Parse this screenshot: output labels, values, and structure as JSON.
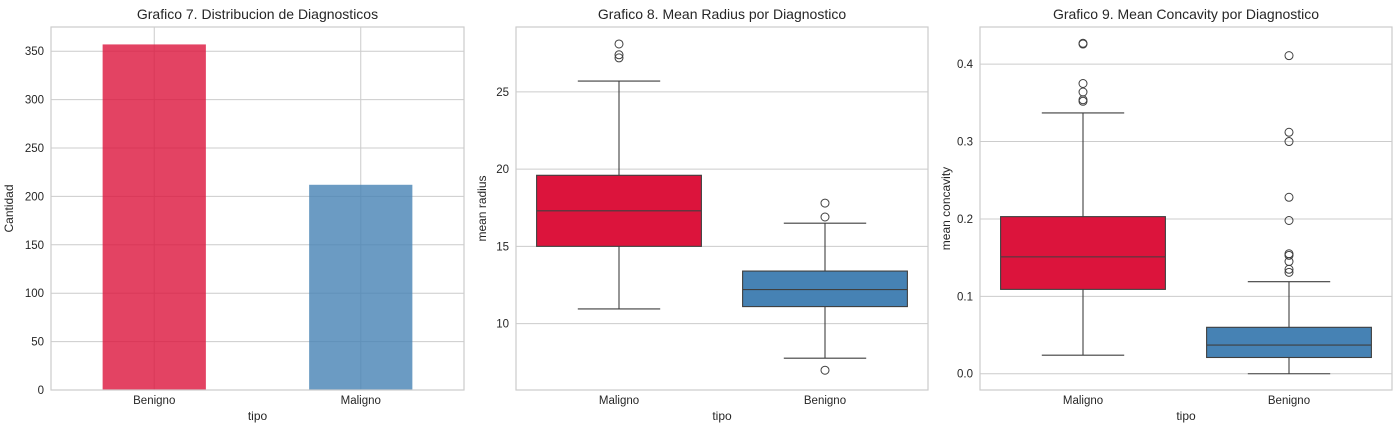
{
  "chart_data": [
    {
      "type": "bar",
      "title": "Grafico 7. Distribucion de Diagnosticos",
      "xlabel": "tipo",
      "ylabel": "Cantidad",
      "categories": [
        "Benigno",
        "Maligno"
      ],
      "values": [
        357,
        212
      ],
      "colors": [
        "#dc143c",
        "#4682b4"
      ],
      "ylim": [
        0,
        375
      ],
      "yticks": [
        0,
        50,
        100,
        150,
        200,
        250,
        300,
        350
      ],
      "grid": true
    },
    {
      "type": "box",
      "title": "Grafico 8. Mean Radius por Diagnostico",
      "xlabel": "tipo",
      "ylabel": "mean radius",
      "categories": [
        "Maligno",
        "Benigno"
      ],
      "colors": [
        "#dc143c",
        "#4682b4"
      ],
      "ylim": [
        5.7,
        29.2
      ],
      "yticks": [
        10,
        15,
        20,
        25
      ],
      "grid": true,
      "boxes": [
        {
          "whisker_low": 10.95,
          "q1": 15.0,
          "median": 17.3,
          "q3": 19.6,
          "whisker_high": 25.7,
          "outliers": [
            27.2,
            27.4,
            28.1
          ]
        },
        {
          "whisker_low": 7.76,
          "q1": 11.1,
          "median": 12.2,
          "q3": 13.4,
          "whisker_high": 16.5,
          "outliers": [
            6.98,
            16.9,
            17.8
          ]
        }
      ]
    },
    {
      "type": "box",
      "title": "Grafico 9. Mean Concavity por Diagnostico",
      "xlabel": "tipo",
      "ylabel": "mean concavity",
      "categories": [
        "Maligno",
        "Benigno"
      ],
      "colors": [
        "#dc143c",
        "#4682b4"
      ],
      "ylim": [
        -0.021,
        0.448
      ],
      "yticks": [
        0.0,
        0.1,
        0.2,
        0.3,
        0.4
      ],
      "grid": true,
      "boxes": [
        {
          "whisker_low": 0.024,
          "q1": 0.109,
          "median": 0.151,
          "q3": 0.203,
          "whisker_high": 0.337,
          "outliers": [
            0.352,
            0.354,
            0.364,
            0.375,
            0.426,
            0.427
          ]
        },
        {
          "whisker_low": 0.0,
          "q1": 0.021,
          "median": 0.037,
          "q3": 0.06,
          "whisker_high": 0.119,
          "outliers": [
            0.131,
            0.135,
            0.145,
            0.153,
            0.155,
            0.198,
            0.228,
            0.3,
            0.312,
            0.411
          ]
        }
      ]
    }
  ]
}
